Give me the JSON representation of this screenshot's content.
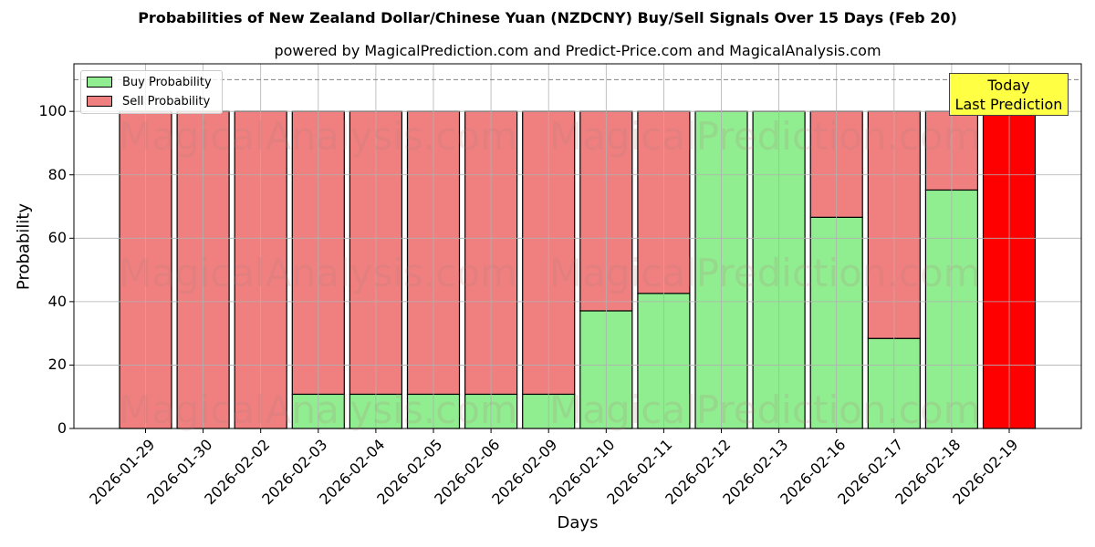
{
  "chart_data": {
    "type": "bar",
    "stacked": true,
    "title": "Probabilities of New Zealand Dollar/Chinese Yuan (NZDCNY) Buy/Sell Signals Over 15 Days (Feb 20)",
    "subtitle": "powered by MagicalPrediction.com and Predict-Price.com and MagicalAnalysis.com",
    "xlabel": "Days",
    "ylabel": "Probability",
    "ylim": [
      0,
      115
    ],
    "yticks": [
      0,
      20,
      40,
      60,
      80,
      100
    ],
    "grid": true,
    "legend_position": "upper left",
    "reference_line": {
      "y": 110,
      "style": "dashed",
      "color": "#808080"
    },
    "categories": [
      "2026-01-29",
      "2026-01-30",
      "2026-02-02",
      "2026-02-03",
      "2026-02-04",
      "2026-02-05",
      "2026-02-06",
      "2026-02-09",
      "2026-02-10",
      "2026-02-11",
      "2026-02-12",
      "2026-02-13",
      "2026-02-16",
      "2026-02-17",
      "2026-02-18",
      "2026-02-19"
    ],
    "series": [
      {
        "name": "Buy Probability",
        "color": "#90ee90",
        "values": [
          0,
          0,
          0,
          10.8,
          10.8,
          10.8,
          10.8,
          10.8,
          37.1,
          42.6,
          100,
          100,
          66.6,
          28.4,
          75.2,
          0
        ]
      },
      {
        "name": "Sell Probability",
        "color": "#f08080",
        "values": [
          100,
          100,
          100,
          89.2,
          89.2,
          89.2,
          89.2,
          89.2,
          62.9,
          57.4,
          0,
          0,
          33.4,
          71.6,
          24.8,
          100
        ]
      }
    ],
    "highlight": {
      "category": "2026-02-19",
      "color": "#ff0000"
    },
    "annotation": {
      "text_line1": "Today",
      "text_line2": "Last Prediction",
      "bg": "#ffff44"
    },
    "watermarks": [
      "MagicalAnalysis.com",
      "MagicalPrediction.com"
    ]
  }
}
